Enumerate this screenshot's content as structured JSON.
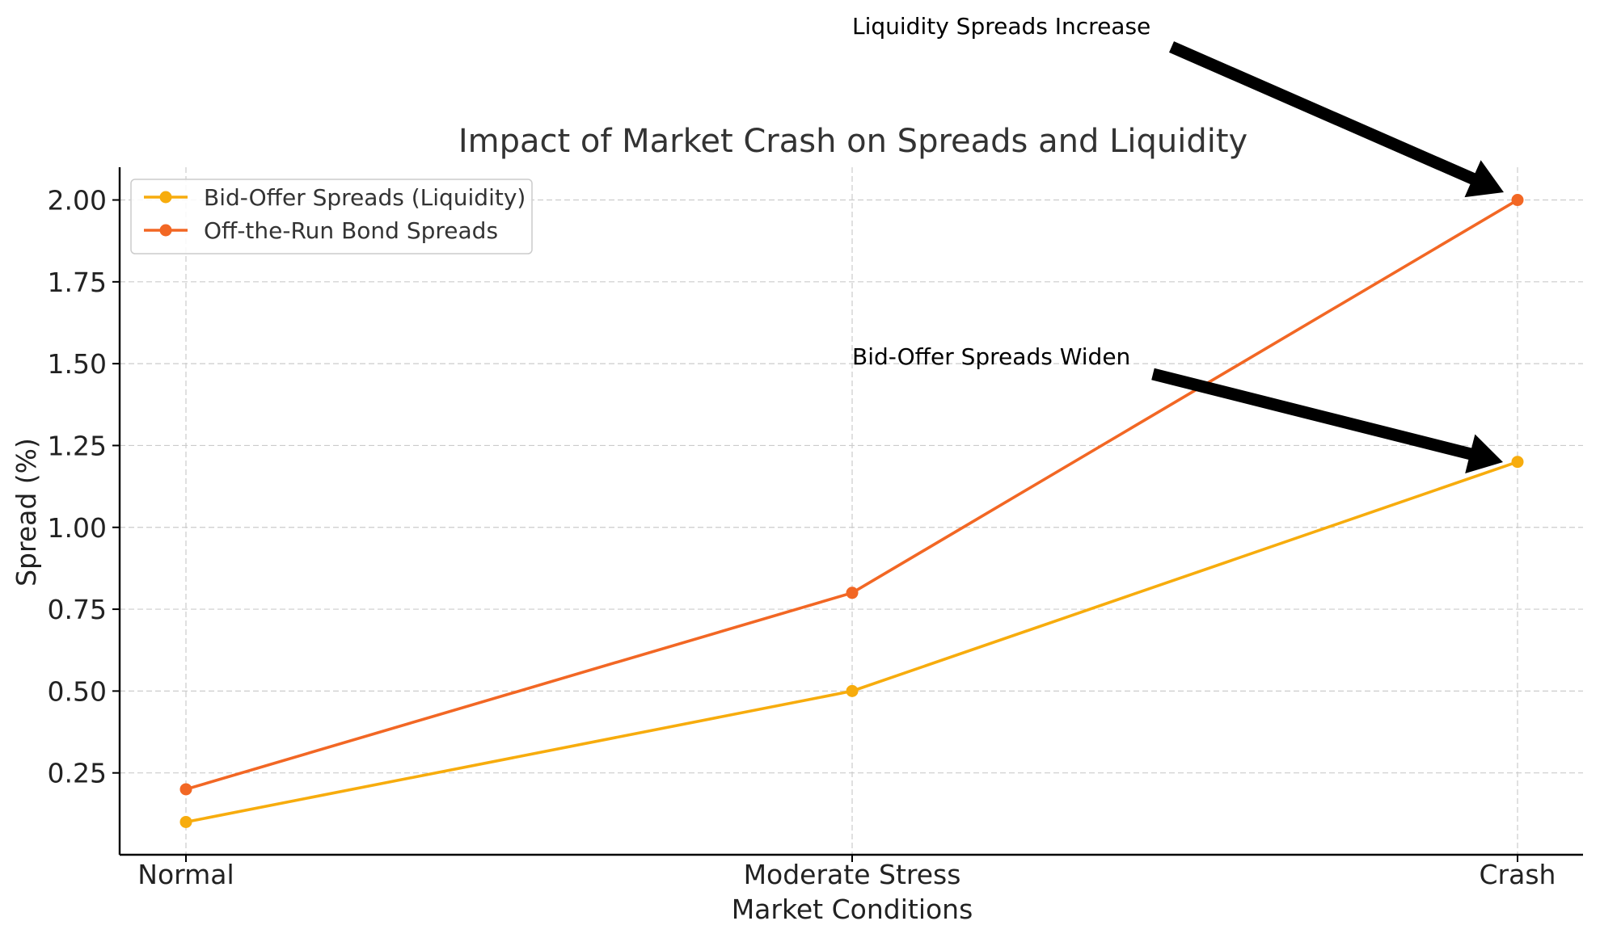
{
  "chart_data": {
    "type": "line",
    "title": "Impact of Market Crash on Spreads and Liquidity",
    "xlabel": "Market Conditions",
    "ylabel": "Spread (%)",
    "categories": [
      "Normal",
      "Moderate Stress",
      "Crash"
    ],
    "ylim": [
      0,
      2.1
    ],
    "yticks": [
      0.25,
      0.5,
      0.75,
      1.0,
      1.25,
      1.5,
      1.75,
      2.0
    ],
    "ytick_labels": [
      "0.25",
      "0.50",
      "0.75",
      "1.00",
      "1.25",
      "1.50",
      "1.75",
      "2.00"
    ],
    "grid": true,
    "legend_position": "upper-left",
    "series": [
      {
        "name": "Bid-Offer Spreads (Liquidity)",
        "values": [
          0.1,
          0.5,
          1.2
        ],
        "color": "#f7ac0d",
        "marker": "circle"
      },
      {
        "name": "Off-the-Run Bond Spreads",
        "values": [
          0.2,
          0.8,
          2.0
        ],
        "color": "#f26724",
        "marker": "circle"
      }
    ],
    "annotations": [
      {
        "text": "Liquidity Spreads Increase",
        "target_category": "Crash",
        "target_value": 2.0
      },
      {
        "text": "Bid-Offer Spreads Widen",
        "target_category": "Crash",
        "target_value": 1.2
      }
    ]
  }
}
